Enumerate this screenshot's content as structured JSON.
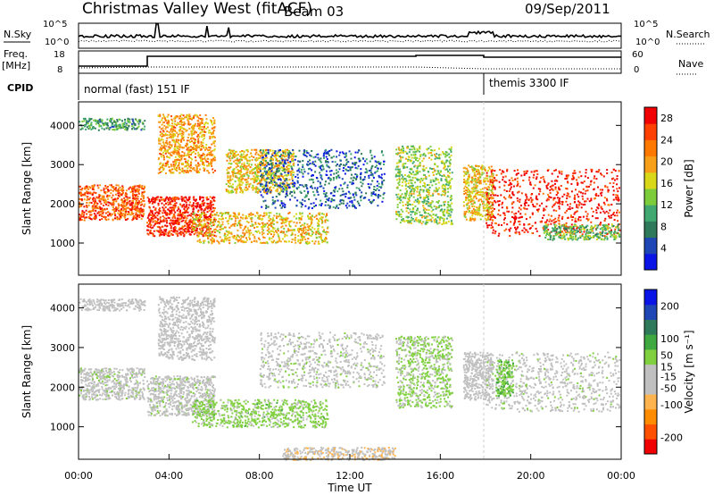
{
  "header": {
    "title": "Christmas Valley West (fitACF)",
    "beam": "Beam 03",
    "date": "09/Sep/2011"
  },
  "param_panels": {
    "nsky_label": "N.Sky",
    "nsky_ticks": [
      "10^5",
      "10^0"
    ],
    "nsearch_label": "N.Search",
    "freq_label": "Freq.",
    "freq_unit": "[MHz]",
    "freq_ticks": [
      "18",
      "8"
    ],
    "nave_ticks": [
      "60",
      "0"
    ],
    "nave_label": "Nave",
    "cpid_label": "CPID",
    "cpid_mode_1": "normal (fast) 151 IF",
    "cpid_mode_2": "themis 3300 IF"
  },
  "colors": {
    "power_scale": [
      "#0a14e6",
      "#1e46b4",
      "#2e7a5a",
      "#40a870",
      "#7ccc3c",
      "#d8d818",
      "#f5a018",
      "#ff7800",
      "#ff4000",
      "#f00000"
    ],
    "velocity_scale": [
      "#f00000",
      "#ff5000",
      "#ff8c00",
      "#ffb450",
      "#c0c0c0",
      "#c0c0c0",
      "#80d040",
      "#40a840",
      "#2e7a5a",
      "#1e46b4",
      "#0a14e6"
    ],
    "background": "#ffffff"
  },
  "chart_data": [
    {
      "type": "heatmap",
      "name": "power",
      "xlabel": "",
      "ylabel": "Slant Range [km]",
      "xlim": [
        0,
        24
      ],
      "ylim": [
        180,
        4600
      ],
      "yticks": [
        "1000",
        "2000",
        "3000",
        "4000"
      ],
      "colorbar_label": "Power [dB]",
      "colorbar_ticks": [
        "4",
        "8",
        "12",
        "16",
        "20",
        "24",
        "28"
      ],
      "colorbar_range": [
        0,
        30
      ],
      "echo_regions": [
        {
          "t0": 0.0,
          "t1": 2.9,
          "r0": 1600,
          "r1": 2500,
          "power": 24
        },
        {
          "t0": 0.0,
          "t1": 2.9,
          "r0": 3900,
          "r1": 4200,
          "power": 10
        },
        {
          "t0": 3.0,
          "t1": 6.0,
          "r0": 1200,
          "r1": 2200,
          "power": 27
        },
        {
          "t0": 3.5,
          "t1": 6.0,
          "r0": 2800,
          "r1": 4300,
          "power": 20
        },
        {
          "t0": 6.5,
          "t1": 9.5,
          "r0": 2300,
          "r1": 3400,
          "power": 18
        },
        {
          "t0": 5.0,
          "t1": 11.0,
          "r0": 1000,
          "r1": 1800,
          "power": 18
        },
        {
          "t0": 8.0,
          "t1": 13.5,
          "r0": 1900,
          "r1": 3400,
          "power": 6
        },
        {
          "t0": 14.0,
          "t1": 16.5,
          "r0": 1500,
          "r1": 3500,
          "power": 14
        },
        {
          "t0": 17.0,
          "t1": 18.3,
          "r0": 1600,
          "r1": 3000,
          "power": 18
        },
        {
          "t0": 18.0,
          "t1": 23.9,
          "r0": 1200,
          "r1": 2900,
          "power": 28
        },
        {
          "t0": 20.5,
          "t1": 23.9,
          "r0": 1100,
          "r1": 1500,
          "power": 12
        }
      ]
    },
    {
      "type": "heatmap",
      "name": "velocity",
      "xlabel": "Time UT",
      "ylabel": "Slant Range [km]",
      "xlim": [
        0,
        24
      ],
      "ylim": [
        180,
        4600
      ],
      "xticks": [
        "00:00",
        "04:00",
        "08:00",
        "12:00",
        "16:00",
        "20:00",
        "00:00"
      ],
      "yticks": [
        "1000",
        "2000",
        "3000",
        "4000"
      ],
      "colorbar_label": "Velocity [m s⁻¹]",
      "colorbar_ticks": [
        "200",
        "100",
        "50",
        "15",
        "-15",
        "-50",
        "-100",
        "-200"
      ],
      "colorbar_range": [
        -250,
        250
      ],
      "echo_regions": [
        {
          "t0": 0.0,
          "t1": 2.9,
          "r0": 1700,
          "r1": 2500,
          "velocity": 0
        },
        {
          "t0": 0.0,
          "t1": 2.9,
          "r0": 3950,
          "r1": 4250,
          "velocity": -10
        },
        {
          "t0": 3.0,
          "t1": 6.0,
          "r0": 1300,
          "r1": 2300,
          "velocity": 0
        },
        {
          "t0": 3.5,
          "t1": 6.0,
          "r0": 2700,
          "r1": 4300,
          "velocity": -20
        },
        {
          "t0": 5.0,
          "t1": 11.0,
          "r0": 1000,
          "r1": 1700,
          "velocity": 40
        },
        {
          "t0": 8.0,
          "t1": 13.5,
          "r0": 2000,
          "r1": 3400,
          "velocity": 0
        },
        {
          "t0": 9.0,
          "t1": 14.0,
          "r0": 180,
          "r1": 500,
          "velocity": -60
        },
        {
          "t0": 14.0,
          "t1": 16.5,
          "r0": 1500,
          "r1": 3300,
          "velocity": 30
        },
        {
          "t0": 17.0,
          "t1": 18.3,
          "r0": 1700,
          "r1": 2900,
          "velocity": -30
        },
        {
          "t0": 18.0,
          "t1": 23.9,
          "r0": 1400,
          "r1": 2900,
          "velocity": 0
        },
        {
          "t0": 18.4,
          "t1": 19.2,
          "r0": 1800,
          "r1": 2700,
          "velocity": 60
        }
      ]
    }
  ]
}
